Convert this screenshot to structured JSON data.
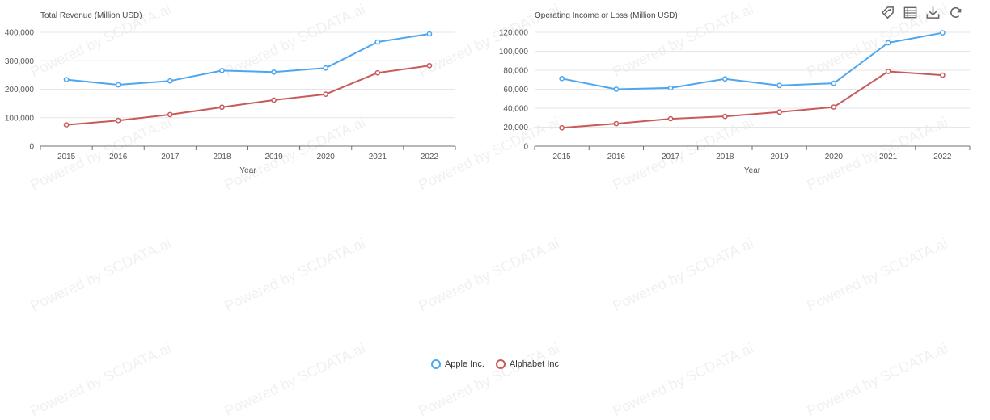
{
  "watermark": {
    "text": "Powered by SCDATA.ai"
  },
  "toolbox": {
    "icons": [
      "tag-icon",
      "data-view-icon",
      "download-icon",
      "refresh-icon"
    ],
    "color": "#666666"
  },
  "legend": {
    "items": [
      {
        "name": "Apple Inc.",
        "color": "#4da6f0"
      },
      {
        "name": "Alphabet Inc",
        "color": "#c85a5a"
      }
    ]
  },
  "chart_data": [
    {
      "type": "line",
      "title": "Total Revenue (Million USD)",
      "xlabel": "Year",
      "ylabel": "",
      "categories": [
        "2015",
        "2016",
        "2017",
        "2018",
        "2019",
        "2020",
        "2021",
        "2022"
      ],
      "ylim": [
        0,
        400000
      ],
      "yticks": [
        "0",
        "100,000",
        "200,000",
        "300,000",
        "400,000"
      ],
      "ytick_values": [
        0,
        100000,
        200000,
        300000,
        400000
      ],
      "grid": true,
      "series": [
        {
          "name": "Apple Inc.",
          "color": "#4da6f0",
          "values": [
            233715,
            215639,
            229234,
            265595,
            260174,
            274515,
            365817,
            394328
          ]
        },
        {
          "name": "Alphabet Inc",
          "color": "#c85a5a",
          "values": [
            74989,
            90272,
            110855,
            136819,
            161857,
            182527,
            257637,
            282836
          ]
        }
      ]
    },
    {
      "type": "line",
      "title": "Operating Income or Loss (Million USD)",
      "xlabel": "Year",
      "ylabel": "",
      "categories": [
        "2015",
        "2016",
        "2017",
        "2018",
        "2019",
        "2020",
        "2021",
        "2022"
      ],
      "ylim": [
        0,
        120000
      ],
      "yticks": [
        "0",
        "20,000",
        "40,000",
        "60,000",
        "80,000",
        "100,000",
        "120,000"
      ],
      "ytick_values": [
        0,
        20000,
        40000,
        60000,
        80000,
        100000,
        120000
      ],
      "grid": true,
      "series": [
        {
          "name": "Apple Inc.",
          "color": "#4da6f0",
          "values": [
            71230,
            60024,
            61344,
            70898,
            63930,
            66288,
            108949,
            119437
          ]
        },
        {
          "name": "Alphabet Inc",
          "color": "#c85a5a",
          "values": [
            19360,
            23716,
            28882,
            31392,
            35928,
            41224,
            78714,
            74842
          ]
        }
      ]
    }
  ]
}
